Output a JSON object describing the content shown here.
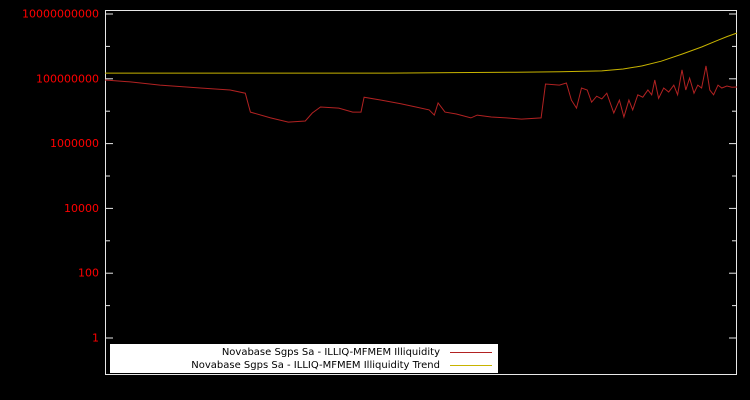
{
  "chart_data": {
    "type": "line",
    "title": "",
    "xlabel": "",
    "ylabel": "",
    "y_scale": "log",
    "ylim": [
      1,
      10000000000.0
    ],
    "grid": false,
    "background": "#000000",
    "border_color": "#e8e8e8",
    "tick_label_color": "#ff0000",
    "legend_position": "bottom-center",
    "yticks": [
      {
        "label": "10000000000",
        "value": 10000000000.0
      },
      {
        "label": "100000000",
        "value": 100000000.0
      },
      {
        "label": "1000000",
        "value": 1000000.0
      },
      {
        "label": "10000",
        "value": 10000.0
      },
      {
        "label": "100",
        "value": 100.0
      },
      {
        "label": "1",
        "value": 1
      }
    ],
    "series": [
      {
        "name": "Novabase Sgps Sa - ILLIQ-MFMEM Illiquidity",
        "color": "#b22222",
        "points": [
          [
            0.0,
            92000000.0
          ],
          [
            0.04,
            80000000.0
          ],
          [
            0.087,
            64000000.0
          ],
          [
            0.151,
            52000000.0
          ],
          [
            0.198,
            45000000.0
          ],
          [
            0.222,
            36000000.0
          ],
          [
            0.23,
            9400000.0
          ],
          [
            0.262,
            6200000.0
          ],
          [
            0.29,
            4600000.0
          ],
          [
            0.317,
            5000000.0
          ],
          [
            0.328,
            8800000.0
          ],
          [
            0.341,
            13500000.0
          ],
          [
            0.37,
            12500000.0
          ],
          [
            0.392,
            9400000.0
          ],
          [
            0.405,
            9400000.0
          ],
          [
            0.41,
            27000000.0
          ],
          [
            0.437,
            22000000.0
          ],
          [
            0.468,
            17000000.0
          ],
          [
            0.492,
            13500000.0
          ],
          [
            0.513,
            11000000.0
          ],
          [
            0.521,
            7600000.0
          ],
          [
            0.527,
            18000000.0
          ],
          [
            0.538,
            9400000.0
          ],
          [
            0.556,
            8200000.0
          ],
          [
            0.579,
            6200000.0
          ],
          [
            0.589,
            7600000.0
          ],
          [
            0.611,
            6600000.0
          ],
          [
            0.635,
            6200000.0
          ],
          [
            0.659,
            5700000.0
          ],
          [
            0.69,
            6200000.0
          ],
          [
            0.697,
            69000000.0
          ],
          [
            0.719,
            64000000.0
          ],
          [
            0.73,
            74000000.0
          ],
          [
            0.738,
            22000000.0
          ],
          [
            0.746,
            12500000.0
          ],
          [
            0.754,
            52000000.0
          ],
          [
            0.763,
            45000000.0
          ],
          [
            0.77,
            19000000.0
          ],
          [
            0.778,
            29000000.0
          ],
          [
            0.786,
            24000000.0
          ],
          [
            0.794,
            36000000.0
          ],
          [
            0.805,
            8800000.0
          ],
          [
            0.814,
            22000000.0
          ],
          [
            0.821,
            6600000.0
          ],
          [
            0.829,
            22000000.0
          ],
          [
            0.835,
            11000000.0
          ],
          [
            0.843,
            32000000.0
          ],
          [
            0.851,
            27000000.0
          ],
          [
            0.859,
            45000000.0
          ],
          [
            0.865,
            32000000.0
          ],
          [
            0.87,
            92000000.0
          ],
          [
            0.876,
            25000000.0
          ],
          [
            0.884,
            52000000.0
          ],
          [
            0.892,
            39000000.0
          ],
          [
            0.9,
            64000000.0
          ],
          [
            0.906,
            32000000.0
          ],
          [
            0.913,
            190000000.0
          ],
          [
            0.919,
            45000000.0
          ],
          [
            0.925,
            105000000.0
          ],
          [
            0.932,
            36000000.0
          ],
          [
            0.938,
            64000000.0
          ],
          [
            0.944,
            52000000.0
          ],
          [
            0.951,
            250000000.0
          ],
          [
            0.957,
            45000000.0
          ],
          [
            0.963,
            32000000.0
          ],
          [
            0.97,
            64000000.0
          ],
          [
            0.976,
            52000000.0
          ],
          [
            0.984,
            60000000.0
          ],
          [
            0.992,
            55000000.0
          ],
          [
            1.0,
            56000000.0
          ]
        ]
      },
      {
        "name": "Novabase Sgps Sa - ILLIQ-MFMEM Illiquidity Trend",
        "color": "#c8b400",
        "points": [
          [
            0.0,
            150000000.0
          ],
          [
            0.15,
            150000000.0
          ],
          [
            0.3,
            150000000.0
          ],
          [
            0.45,
            150000000.0
          ],
          [
            0.55,
            155000000.0
          ],
          [
            0.65,
            160000000.0
          ],
          [
            0.72,
            165000000.0
          ],
          [
            0.786,
            175000000.0
          ],
          [
            0.82,
            200000000.0
          ],
          [
            0.85,
            250000000.0
          ],
          [
            0.88,
            350000000.0
          ],
          [
            0.913,
            580000000.0
          ],
          [
            0.944,
            960000000.0
          ],
          [
            0.968,
            1500000000.0
          ],
          [
            0.984,
            2000000000.0
          ],
          [
            1.0,
            2600000000.0
          ]
        ]
      }
    ]
  }
}
